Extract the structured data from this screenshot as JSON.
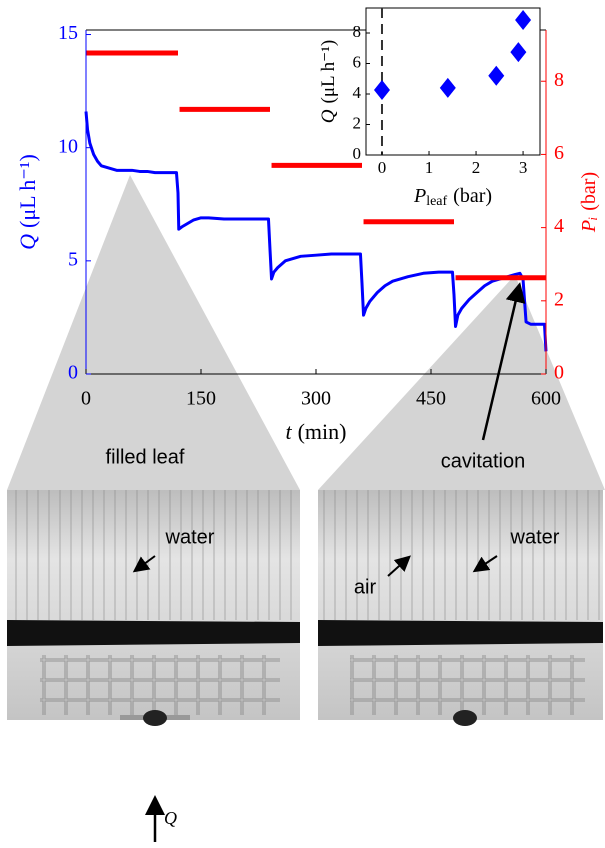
{
  "chart_data": [
    {
      "type": "line",
      "xlabel": {
        "symbol": "t",
        "unit": "(min)"
      },
      "ylabel": {
        "symbol": "Q",
        "unit": "(μL h⁻¹)"
      },
      "y2label": {
        "symbol": "Pᵢ",
        "unit": "(bar)"
      },
      "xlim": [
        0,
        600
      ],
      "xticks": [
        0,
        150,
        300,
        450,
        600
      ],
      "ylim": [
        0,
        15.2
      ],
      "yticks": [
        0,
        5,
        10,
        15
      ],
      "y2lim": [
        0,
        9.4
      ],
      "y2ticks": [
        0,
        2,
        4,
        6,
        8
      ],
      "series": [
        {
          "name": "Q",
          "color": "#0000ff",
          "axis": "y",
          "x": [
            0,
            2,
            5,
            10,
            15,
            20,
            30,
            40,
            50,
            60,
            70,
            80,
            90,
            100,
            110,
            118,
            120,
            121,
            125,
            130,
            140,
            150,
            160,
            180,
            200,
            220,
            238,
            240,
            242,
            245,
            250,
            260,
            270,
            280,
            300,
            320,
            340,
            358,
            360,
            362,
            365,
            370,
            380,
            390,
            400,
            420,
            440,
            460,
            478,
            480,
            482,
            485,
            490,
            500,
            510,
            520,
            530,
            540,
            550,
            560,
            566,
            570,
            574,
            580,
            590,
            598,
            600
          ],
          "values": [
            11.6,
            10.8,
            10.2,
            9.7,
            9.4,
            9.2,
            9.1,
            9.0,
            9.0,
            9.0,
            8.95,
            8.95,
            8.9,
            8.9,
            8.9,
            8.9,
            8.0,
            6.4,
            6.5,
            6.6,
            6.8,
            6.9,
            6.9,
            6.85,
            6.85,
            6.85,
            6.85,
            5.5,
            4.2,
            4.5,
            4.7,
            5.0,
            5.1,
            5.2,
            5.25,
            5.3,
            5.3,
            5.3,
            4.0,
            2.6,
            2.9,
            3.2,
            3.6,
            3.9,
            4.1,
            4.3,
            4.45,
            4.5,
            4.5,
            3.5,
            2.1,
            2.6,
            2.9,
            3.3,
            3.6,
            3.9,
            4.1,
            4.2,
            4.3,
            4.4,
            4.45,
            4.2,
            2.3,
            2.2,
            2.2,
            2.2,
            1.0
          ]
        },
        {
          "name": "Pᵢ",
          "color": "#ff0000",
          "axis": "y2",
          "x": [
            0,
            120,
            121,
            122,
            240,
            241,
            242,
            360,
            361,
            362,
            480,
            481,
            482,
            600
          ],
          "values": [
            8.77,
            8.77,
            null,
            7.23,
            7.23,
            null,
            5.7,
            5.7,
            null,
            4.16,
            4.16,
            null,
            2.63,
            2.63
          ]
        }
      ]
    },
    {
      "type": "scatter",
      "xlabel": {
        "symbol": "P",
        "subscript": "leaf",
        "unit": "(bar)"
      },
      "ylabel": {
        "symbol": "Q",
        "unit": "(μL h⁻¹)"
      },
      "xlim": [
        -0.34,
        3.36
      ],
      "xticks": [
        0,
        1,
        2,
        3
      ],
      "ylim": [
        0,
        9.64
      ],
      "yticks": [
        0,
        2,
        4,
        6,
        8
      ],
      "vline": 0,
      "series": [
        {
          "color": "#0000ff",
          "x": [
            0.0,
            1.4,
            2.43,
            2.9,
            3.0
          ],
          "values": [
            4.26,
            4.4,
            5.2,
            6.75,
            8.85
          ]
        }
      ]
    }
  ],
  "panels": [
    {
      "title": "filled leaf",
      "labels": [
        "water"
      ]
    },
    {
      "title": "cavitation",
      "labels": [
        "air",
        "water"
      ]
    }
  ],
  "flow_label": "Q"
}
